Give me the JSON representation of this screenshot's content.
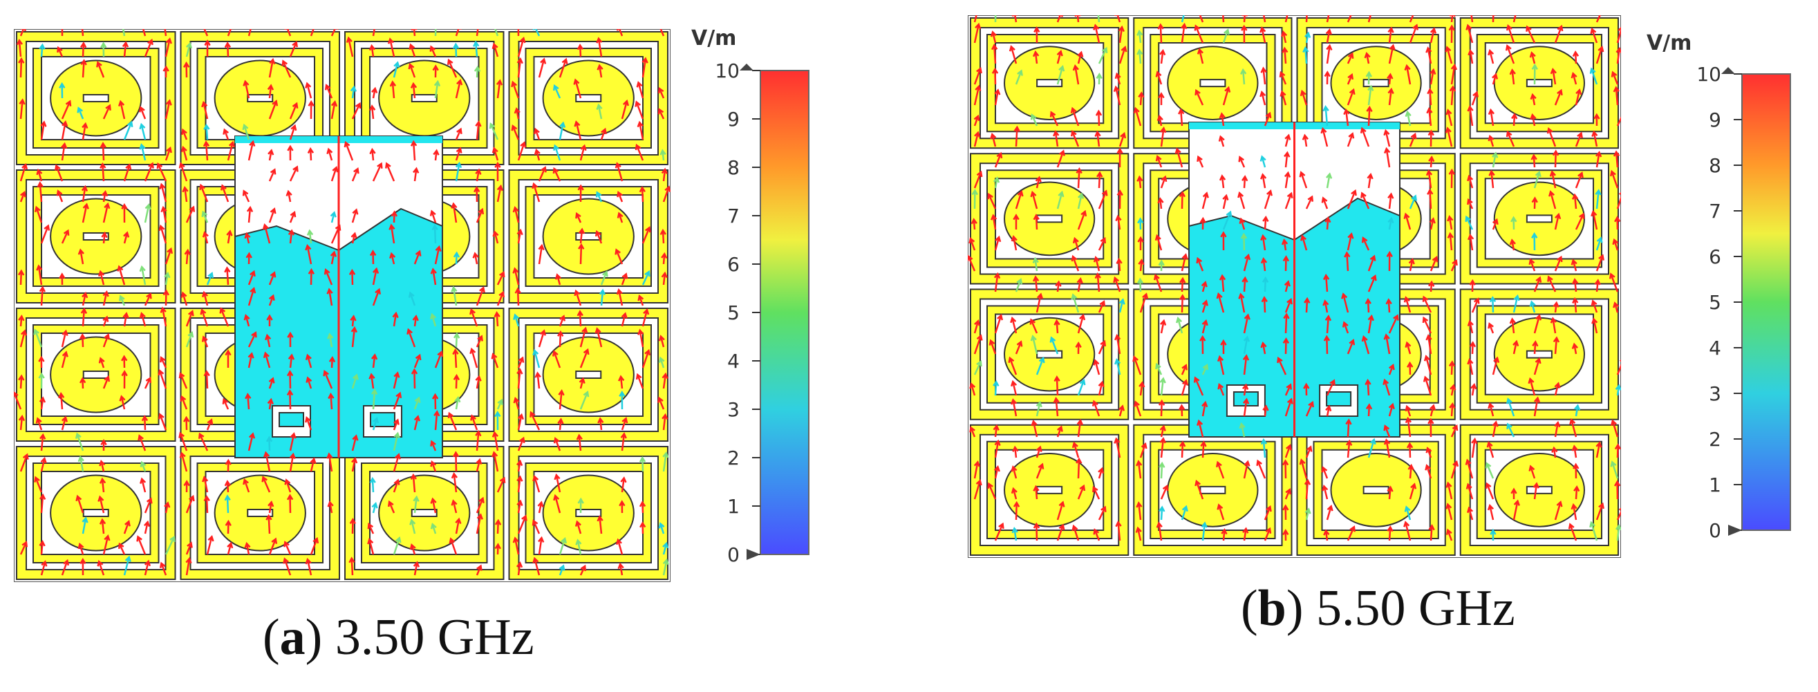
{
  "panels": [
    {
      "id": "a",
      "letter": "a",
      "frequency": "3.50 GHz",
      "unit": "V/m",
      "colorbar_ticks": [
        "10",
        "9",
        "8",
        "7",
        "6",
        "5",
        "4",
        "3",
        "2",
        "1",
        "0"
      ]
    },
    {
      "id": "b",
      "letter": "b",
      "frequency": "5.50 GHz",
      "unit": "V/m",
      "colorbar_ticks": [
        "10",
        "9",
        "8",
        "7",
        "6",
        "5",
        "4",
        "3",
        "2",
        "1",
        "0"
      ]
    }
  ],
  "colors": {
    "patch_yellow": "#ffff33",
    "trace_dark": "#333333",
    "substrate_cyan": "#22e6ee",
    "arrow_red": "#ff2020",
    "colorbar_top": "#ff3030",
    "colorbar_bottom": "#4a4cff"
  }
}
